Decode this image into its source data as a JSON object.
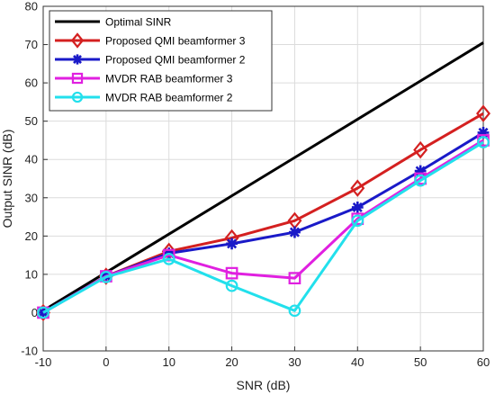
{
  "chart_data": {
    "type": "line",
    "xlabel": "SNR (dB)",
    "ylabel": "Output SINR (dB)",
    "xlim": [
      -10,
      60
    ],
    "ylim": [
      -10,
      80
    ],
    "xticks": [
      -10,
      0,
      10,
      20,
      30,
      40,
      50,
      60
    ],
    "yticks": [
      -10,
      0,
      10,
      20,
      30,
      40,
      50,
      60,
      70,
      80
    ],
    "grid": true,
    "legend_position": "top-left",
    "x": [
      -10,
      0,
      10,
      20,
      30,
      40,
      50,
      60
    ],
    "series": [
      {
        "name": "Optimal SINR",
        "color": "#000000",
        "marker": "none",
        "values": [
          0.5,
          10.5,
          20.5,
          30.5,
          40.5,
          50.5,
          60.5,
          70.5
        ]
      },
      {
        "name": "Proposed QMI beamformer 3",
        "color": "#d42020",
        "marker": "diamond",
        "values": [
          0,
          9.5,
          16,
          19.5,
          24,
          32.5,
          42.5,
          52
        ]
      },
      {
        "name": "Proposed QMI beamformer 2",
        "color": "#1a1ac8",
        "marker": "asterisk",
        "values": [
          0,
          9.5,
          15.5,
          18,
          21,
          27.5,
          37,
          47
        ]
      },
      {
        "name": "MVDR RAB beamformer 3",
        "color": "#e020e0",
        "marker": "square",
        "values": [
          0,
          9.5,
          15,
          10.3,
          9,
          24.5,
          35,
          45
        ]
      },
      {
        "name": "MVDR RAB beamformer 2",
        "color": "#22e0ec",
        "marker": "circle",
        "values": [
          0,
          9.3,
          14,
          7,
          0.5,
          24,
          34.5,
          44.5
        ]
      }
    ]
  }
}
